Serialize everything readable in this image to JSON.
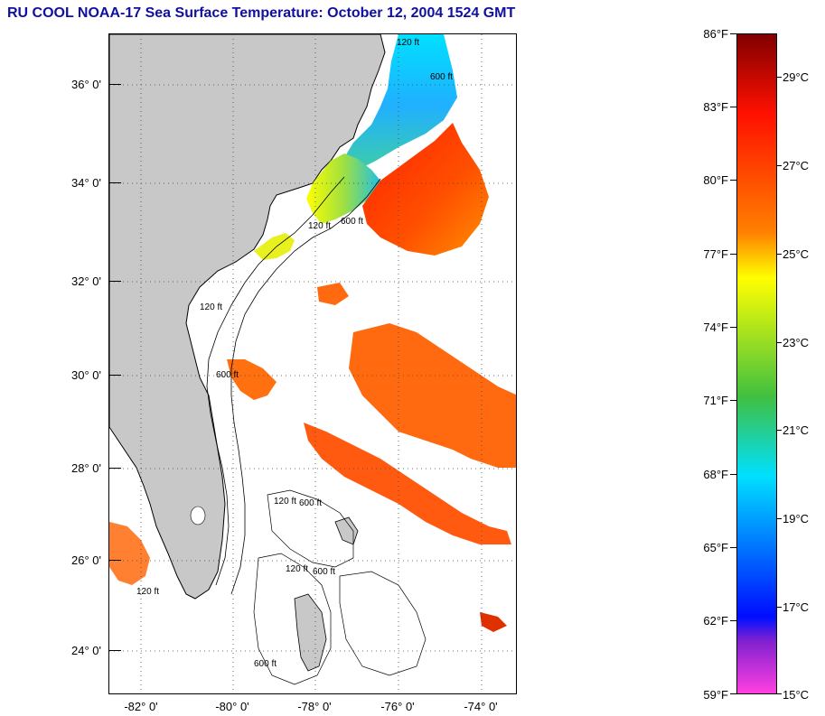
{
  "title": "RU COOL  NOAA-17  Sea Surface Temperature:  October 12, 2004 1524 GMT",
  "map": {
    "latitude_labels": [
      "36° 0'",
      "34° 0'",
      "32° 0'",
      "30° 0'",
      "28° 0'",
      "26° 0'",
      "24° 0'"
    ],
    "longitude_labels": [
      "-82° 0'",
      "-80° 0'",
      "-78° 0'",
      "-76° 0'",
      "-74° 0'"
    ],
    "grid": "dotted",
    "land_color": "#c8c8c8",
    "cloud_color": "#ffffff",
    "isobath_labels": [
      "120 ft",
      "600 ft",
      "120 ft",
      "600 ft",
      "120 ft",
      "600 ft",
      "120 ft",
      "600 ft",
      "120 ft",
      "600 ft",
      "120 ft",
      "600 ft"
    ]
  },
  "colorbar": {
    "fahrenheit_labels": [
      "86°F",
      "83°F",
      "80°F",
      "77°F",
      "74°F",
      "71°F",
      "68°F",
      "65°F",
      "62°F",
      "59°F"
    ],
    "celsius_labels": [
      "29°C",
      "27°C",
      "25°C",
      "23°C",
      "21°C",
      "19°C",
      "17°C",
      "15°C"
    ],
    "colors": {
      "hot": "#800000",
      "red": "#ff1000",
      "orange": "#ff8000",
      "yellow": "#ffff00",
      "green": "#40c040",
      "cyan": "#00e0ff",
      "blue": "#0010ff",
      "magenta": "#ff40e0"
    }
  }
}
